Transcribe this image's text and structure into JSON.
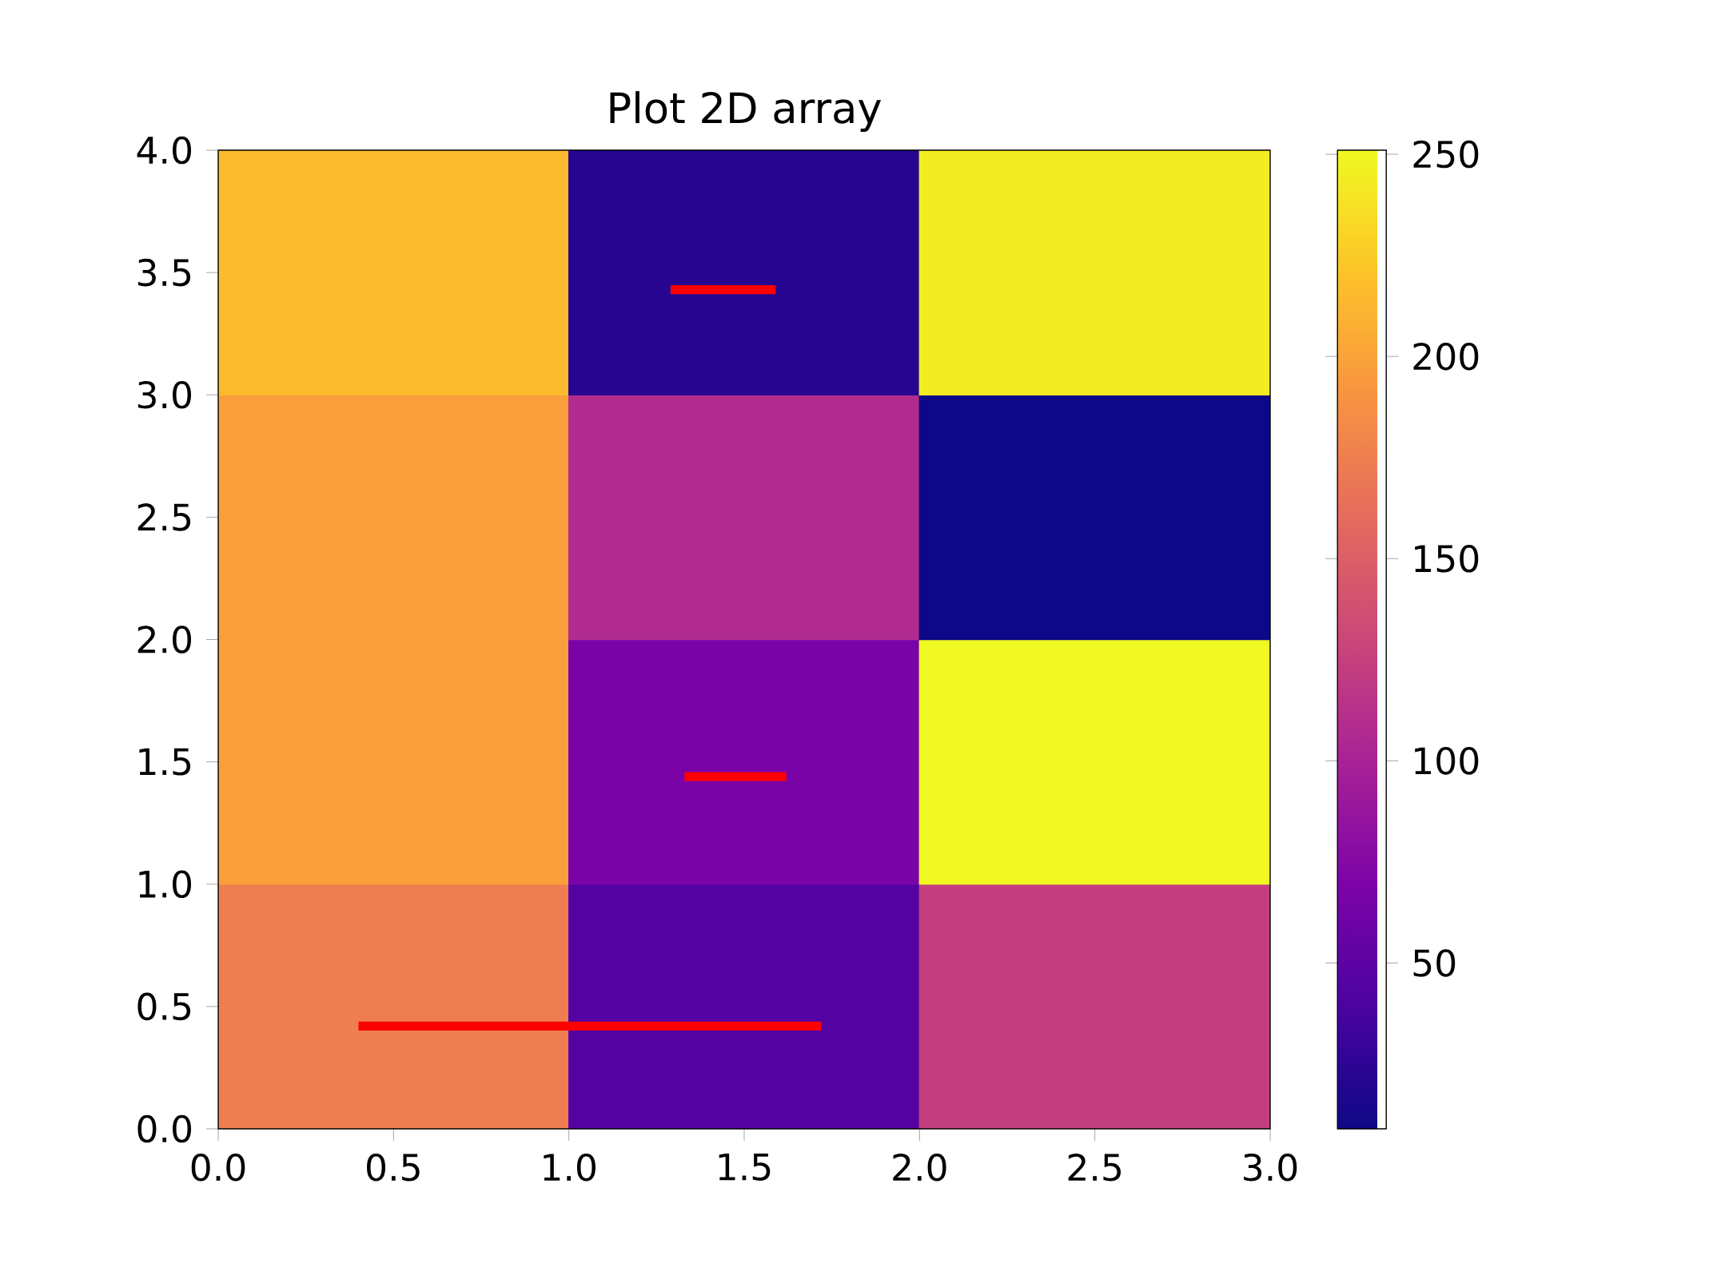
{
  "chart_data": {
    "type": "heatmap",
    "title": "Plot 2D array",
    "cells": [
      [
        215,
        21,
        244
      ],
      [
        198,
        108,
        9
      ],
      [
        198,
        68,
        251
      ],
      [
        174,
        45,
        124
      ]
    ],
    "clim": [
      9,
      251
    ],
    "cticks": [
      50,
      100,
      150,
      200,
      250
    ],
    "xlim": [
      0,
      3
    ],
    "ylim": [
      0,
      4
    ],
    "xticks": [
      {
        "value": 0,
        "label": "0.0"
      },
      {
        "value": 0.5,
        "label": "0.5"
      },
      {
        "value": 1,
        "label": "1.0"
      },
      {
        "value": 1.5,
        "label": "1.5"
      },
      {
        "value": 2,
        "label": "2.0"
      },
      {
        "value": 2.5,
        "label": "2.5"
      },
      {
        "value": 3,
        "label": "3.0"
      }
    ],
    "yticks": [
      {
        "value": 0,
        "label": "0.0"
      },
      {
        "value": 0.5,
        "label": "0.5"
      },
      {
        "value": 1,
        "label": "1.0"
      },
      {
        "value": 1.5,
        "label": "1.5"
      },
      {
        "value": 2,
        "label": "2.0"
      },
      {
        "value": 2.5,
        "label": "2.5"
      },
      {
        "value": 3,
        "label": "3.0"
      },
      {
        "value": 3.5,
        "label": "3.5"
      },
      {
        "value": 4,
        "label": "4.0"
      }
    ],
    "series": [
      {
        "type": "line",
        "color": "#ff0000",
        "x": [
          1.29,
          1.59,
          1.5,
          1.33,
          1.62,
          1.5,
          0.4,
          1.72
        ],
        "values": [
          3.43,
          3.43,
          null,
          1.44,
          1.44,
          null,
          0.42,
          0.42
        ]
      }
    ]
  }
}
